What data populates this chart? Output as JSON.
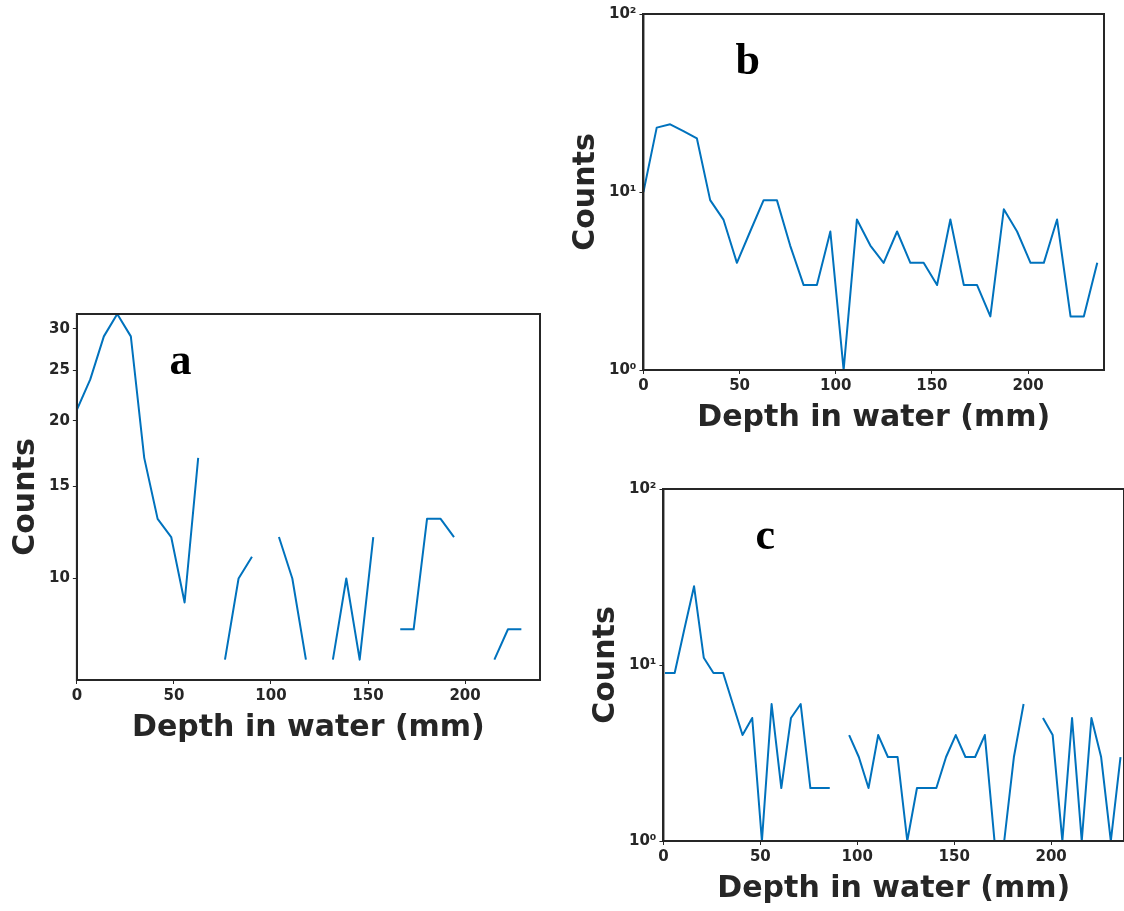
{
  "chart_data": [
    {
      "type": "line",
      "xlabel": "Depth in water (mm)",
      "ylabel": "Counts",
      "annotations": [
        "a"
      ],
      "log": true,
      "grid": false,
      "marker": "none",
      "line_style": "solid",
      "color": "#0072bd",
      "x": [
        0,
        6.9,
        13.9,
        20.8,
        27.8,
        34.7,
        41.6,
        48.6,
        55.5,
        62.5,
        69.4,
        76.3,
        83.3,
        90.2,
        97.2,
        104.1,
        111,
        118,
        124.9,
        131.9,
        138.8,
        145.7,
        152.7,
        159.6,
        166.6,
        173.5,
        180.4,
        187.4,
        194.3,
        201.3,
        208.2,
        215.1,
        222.1,
        229
      ],
      "values": [
        21,
        24,
        29,
        32,
        29,
        17,
        13,
        12,
        9,
        17,
        null,
        7,
        10,
        11,
        null,
        12,
        10,
        7,
        null,
        7,
        10,
        7,
        12,
        null,
        8,
        8,
        13,
        13,
        12,
        null,
        null,
        7,
        8,
        8
      ],
      "xlim": [
        0,
        238.6
      ],
      "ylim": [
        6.4,
        32
      ],
      "xticks": [
        0,
        50,
        100,
        150,
        200
      ],
      "yticks": [
        10,
        15,
        20,
        25,
        30
      ]
    },
    {
      "type": "line",
      "xlabel": "Depth in water (mm)",
      "ylabel": "Counts",
      "annotations": [
        "b"
      ],
      "log": true,
      "grid": false,
      "marker": "none",
      "line_style": "solid",
      "color": "#0072bd",
      "x": [
        0,
        6.9,
        13.9,
        20.8,
        27.8,
        34.7,
        41.6,
        48.6,
        55.5,
        62.5,
        69.4,
        76.3,
        83.3,
        90.2,
        97.2,
        104.1,
        111,
        118,
        124.9,
        131.9,
        138.8,
        145.7,
        152.7,
        159.6,
        166.6,
        173.5,
        180.4,
        187.4,
        194.3,
        201.3,
        208.2,
        215.1,
        222.1,
        229,
        236
      ],
      "values": [
        10,
        23,
        24,
        22,
        20,
        9,
        7,
        4,
        6,
        9,
        9,
        5,
        3,
        3,
        6,
        1,
        7,
        5,
        4,
        6,
        4,
        4,
        3,
        7,
        3,
        3,
        2,
        8,
        6,
        4,
        4,
        7,
        2,
        2,
        4
      ],
      "xlim": [
        0,
        239.5
      ],
      "ylim": [
        1,
        100
      ],
      "xticks": [
        0,
        50,
        100,
        150,
        200
      ],
      "yticks": [
        {
          "value": 1,
          "label": "10⁰"
        },
        {
          "value": 10,
          "label": "10¹"
        },
        {
          "value": 100,
          "label": "10²"
        }
      ]
    },
    {
      "type": "line",
      "xlabel": "Depth in water (mm)",
      "ylabel": "Counts",
      "annotations": [
        "c"
      ],
      "log": true,
      "grid": false,
      "marker": "none",
      "line_style": "solid",
      "color": "#0072bd",
      "x": [
        0.8,
        5.8,
        10.8,
        15.8,
        20.8,
        25.8,
        30.8,
        35.8,
        40.8,
        45.8,
        50.8,
        55.8,
        60.8,
        65.8,
        70.8,
        75.8,
        80.8,
        85.8,
        90.8,
        95.8,
        100.8,
        105.8,
        110.8,
        115.8,
        120.8,
        125.8,
        130.8,
        135.8,
        140.8,
        145.8,
        150.8,
        155.8,
        160.8,
        165.8,
        170.8,
        175.8,
        180.8,
        185.8,
        190.8,
        195.8,
        200.8,
        205.8,
        210.8,
        215.8,
        220.8,
        225.8,
        230.8,
        235.8
      ],
      "values": [
        9,
        9,
        16,
        28,
        11,
        9,
        9,
        6,
        4,
        5,
        1,
        6,
        2,
        5,
        6,
        2,
        2,
        2,
        null,
        4,
        3,
        2,
        4,
        3,
        3,
        1,
        2,
        2,
        2,
        3,
        4,
        3,
        3,
        4,
        1,
        1,
        3,
        6,
        null,
        5,
        4,
        1,
        5,
        1,
        5,
        3,
        1,
        3
      ],
      "xlim": [
        0,
        237.6
      ],
      "ylim": [
        1,
        100
      ],
      "xticks": [
        0,
        50,
        100,
        150,
        200
      ],
      "yticks": [
        {
          "value": 1,
          "label": "10⁰"
        },
        {
          "value": 10,
          "label": "10¹"
        },
        {
          "value": 100,
          "label": "10²"
        }
      ]
    }
  ]
}
